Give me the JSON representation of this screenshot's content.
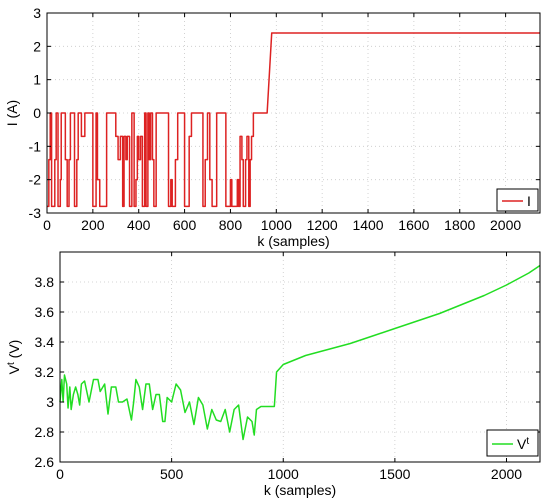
{
  "chart_data": [
    {
      "type": "line",
      "xlabel": "k (samples)",
      "ylabel": "I (A)",
      "xlim": [
        0,
        2150
      ],
      "ylim": [
        -3,
        3
      ],
      "x_ticks": [
        0,
        200,
        400,
        600,
        800,
        1000,
        1200,
        1400,
        1600,
        1800,
        2000
      ],
      "y_ticks": [
        -3,
        -2,
        -1,
        0,
        1,
        2,
        3
      ],
      "grid": true,
      "legend_position": "bottom-right",
      "series": [
        {
          "name": "I",
          "color": "#dd2222",
          "points": [
            [
              0,
              -2.8
            ],
            [
              8,
              -2.8
            ],
            [
              8,
              -1.4
            ],
            [
              14,
              -1.4
            ],
            [
              14,
              0
            ],
            [
              20,
              0
            ],
            [
              20,
              -2.8
            ],
            [
              34,
              -2.8
            ],
            [
              34,
              -1.4
            ],
            [
              40,
              -1.4
            ],
            [
              40,
              0
            ],
            [
              48,
              0
            ],
            [
              48,
              -2.8
            ],
            [
              58,
              -2.8
            ],
            [
              58,
              -2
            ],
            [
              62,
              -2
            ],
            [
              62,
              0
            ],
            [
              80,
              0
            ],
            [
              80,
              -1.4
            ],
            [
              88,
              -1.4
            ],
            [
              88,
              -2.8
            ],
            [
              96,
              -2.8
            ],
            [
              96,
              -1.4
            ],
            [
              102,
              -1.4
            ],
            [
              102,
              0
            ],
            [
              120,
              0
            ],
            [
              120,
              -2.8
            ],
            [
              130,
              -2.8
            ],
            [
              130,
              -1.4
            ],
            [
              136,
              -1.4
            ],
            [
              136,
              0
            ],
            [
              150,
              0
            ],
            [
              150,
              -0.7
            ],
            [
              160,
              -0.7
            ],
            [
              160,
              -0.7
            ],
            [
              165,
              -0.7
            ],
            [
              165,
              0
            ],
            [
              200,
              0
            ],
            [
              200,
              -2.8
            ],
            [
              208,
              -2.8
            ],
            [
              208,
              -2.8
            ],
            [
              214,
              -2.8
            ],
            [
              214,
              0
            ],
            [
              220,
              0
            ],
            [
              220,
              -2
            ],
            [
              230,
              -2
            ],
            [
              230,
              -2.8
            ],
            [
              260,
              -2.8
            ],
            [
              260,
              0
            ],
            [
              300,
              0
            ],
            [
              300,
              -0.7
            ],
            [
              310,
              -0.7
            ],
            [
              310,
              -1.4
            ],
            [
              320,
              -1.4
            ],
            [
              320,
              -0.7
            ],
            [
              330,
              -0.7
            ],
            [
              330,
              -2.8
            ],
            [
              336,
              -2.8
            ],
            [
              336,
              -0.7
            ],
            [
              344,
              -0.7
            ],
            [
              344,
              -1.4
            ],
            [
              350,
              -1.4
            ],
            [
              350,
              -0.7
            ],
            [
              360,
              -0.7
            ],
            [
              360,
              -2.8
            ],
            [
              370,
              -2.8
            ],
            [
              370,
              0
            ],
            [
              380,
              0
            ],
            [
              380,
              -2.8
            ],
            [
              388,
              -2.8
            ],
            [
              388,
              -2
            ],
            [
              394,
              -2
            ],
            [
              394,
              -0.7
            ],
            [
              400,
              -0.7
            ],
            [
              400,
              -1.4
            ],
            [
              408,
              -1.4
            ],
            [
              408,
              -0.7
            ],
            [
              416,
              -0.7
            ],
            [
              416,
              -2.8
            ],
            [
              426,
              -2.8
            ],
            [
              426,
              0
            ],
            [
              432,
              0
            ],
            [
              432,
              -2.8
            ],
            [
              440,
              -2.8
            ],
            [
              440,
              0
            ],
            [
              446,
              0
            ],
            [
              446,
              -1.4
            ],
            [
              452,
              -1.4
            ],
            [
              452,
              0
            ],
            [
              460,
              0
            ],
            [
              460,
              -1.4
            ],
            [
              466,
              -1.4
            ],
            [
              466,
              -2.8
            ],
            [
              476,
              -2.8
            ],
            [
              476,
              0
            ],
            [
              530,
              0
            ],
            [
              530,
              -2.8
            ],
            [
              540,
              -2.8
            ],
            [
              540,
              -2
            ],
            [
              546,
              -2
            ],
            [
              546,
              -2.8
            ],
            [
              560,
              -2.8
            ],
            [
              560,
              -1.4
            ],
            [
              570,
              -1.4
            ],
            [
              570,
              0
            ],
            [
              600,
              0
            ],
            [
              600,
              -2.8
            ],
            [
              620,
              -2.8
            ],
            [
              620,
              -0.7
            ],
            [
              630,
              -0.7
            ],
            [
              630,
              0
            ],
            [
              680,
              0
            ],
            [
              680,
              -2.8
            ],
            [
              690,
              -2.8
            ],
            [
              690,
              -1.4
            ],
            [
              700,
              -1.4
            ],
            [
              700,
              0
            ],
            [
              710,
              0
            ],
            [
              710,
              -2
            ],
            [
              720,
              -2
            ],
            [
              720,
              -2.8
            ],
            [
              740,
              -2.8
            ],
            [
              740,
              0
            ],
            [
              780,
              0
            ],
            [
              780,
              -2.8
            ],
            [
              800,
              -2.8
            ],
            [
              800,
              -2
            ],
            [
              806,
              -2
            ],
            [
              806,
              -2.8
            ],
            [
              830,
              -2.8
            ],
            [
              830,
              -2
            ],
            [
              836,
              -2
            ],
            [
              836,
              -2.8
            ],
            [
              842,
              -2.8
            ],
            [
              842,
              -0.7
            ],
            [
              850,
              -0.7
            ],
            [
              850,
              -1.4
            ],
            [
              856,
              -1.4
            ],
            [
              856,
              -2.8
            ],
            [
              866,
              -2.8
            ],
            [
              866,
              -1.4
            ],
            [
              872,
              -1.4
            ],
            [
              872,
              -0.7
            ],
            [
              880,
              -0.7
            ],
            [
              880,
              -2.8
            ],
            [
              886,
              -2.8
            ],
            [
              886,
              -1.4
            ],
            [
              892,
              -1.4
            ],
            [
              892,
              -0.7
            ],
            [
              900,
              -0.7
            ],
            [
              900,
              0
            ],
            [
              960,
              0
            ],
            [
              980,
              2.4
            ],
            [
              2150,
              2.4
            ]
          ]
        }
      ]
    },
    {
      "type": "line",
      "xlabel": "k (samples)",
      "ylabel": "V",
      "ylabel_sup": "t",
      "ylabel_suffix": " (V)",
      "xlim": [
        0,
        2150
      ],
      "ylim": [
        2.6,
        4.0
      ],
      "x_ticks": [
        0,
        500,
        1000,
        1500,
        2000
      ],
      "y_ticks": [
        2.6,
        2.8,
        3.0,
        3.2,
        3.4,
        3.6,
        3.8
      ],
      "y_tick_labels": [
        "2.6",
        "2.8",
        "3",
        "3.2",
        "3.4",
        "3.6",
        "3.8"
      ],
      "grid": true,
      "legend_position": "bottom-right",
      "series": [
        {
          "name": "V",
          "name_sup": "t",
          "color": "#22dd22",
          "points": [
            [
              0,
              3.0
            ],
            [
              8,
              3.15
            ],
            [
              14,
              3.0
            ],
            [
              20,
              3.18
            ],
            [
              30,
              3.12
            ],
            [
              36,
              2.96
            ],
            [
              44,
              3.1
            ],
            [
              50,
              2.95
            ],
            [
              60,
              3.05
            ],
            [
              70,
              3.1
            ],
            [
              80,
              3.05
            ],
            [
              88,
              2.98
            ],
            [
              96,
              3.12
            ],
            [
              110,
              3.14
            ],
            [
              130,
              3.0
            ],
            [
              150,
              3.15
            ],
            [
              170,
              3.15
            ],
            [
              180,
              3.07
            ],
            [
              200,
              3.12
            ],
            [
              215,
              2.92
            ],
            [
              230,
              3.1
            ],
            [
              250,
              3.1
            ],
            [
              262,
              3.0
            ],
            [
              280,
              3.0
            ],
            [
              300,
              3.02
            ],
            [
              320,
              2.88
            ],
            [
              330,
              3.0
            ],
            [
              340,
              3.15
            ],
            [
              355,
              3.1
            ],
            [
              370,
              2.95
            ],
            [
              385,
              3.12
            ],
            [
              400,
              3.12
            ],
            [
              415,
              2.95
            ],
            [
              430,
              3.05
            ],
            [
              445,
              3.05
            ],
            [
              460,
              2.87
            ],
            [
              470,
              2.87
            ],
            [
              480,
              3.03
            ],
            [
              500,
              3.0
            ],
            [
              520,
              3.12
            ],
            [
              540,
              3.08
            ],
            [
              560,
              2.93
            ],
            [
              580,
              3.0
            ],
            [
              600,
              2.85
            ],
            [
              620,
              3.03
            ],
            [
              640,
              2.98
            ],
            [
              660,
              2.82
            ],
            [
              680,
              2.95
            ],
            [
              700,
              2.88
            ],
            [
              720,
              2.87
            ],
            [
              740,
              2.95
            ],
            [
              760,
              2.8
            ],
            [
              780,
              2.95
            ],
            [
              800,
              2.98
            ],
            [
              820,
              2.75
            ],
            [
              840,
              2.9
            ],
            [
              860,
              2.87
            ],
            [
              870,
              2.78
            ],
            [
              880,
              2.95
            ],
            [
              900,
              2.97
            ],
            [
              960,
              2.97
            ],
            [
              970,
              3.2
            ],
            [
              1000,
              3.25
            ],
            [
              1100,
              3.31
            ],
            [
              1200,
              3.35
            ],
            [
              1300,
              3.39
            ],
            [
              1400,
              3.44
            ],
            [
              1500,
              3.49
            ],
            [
              1600,
              3.54
            ],
            [
              1700,
              3.59
            ],
            [
              1800,
              3.65
            ],
            [
              1900,
              3.71
            ],
            [
              2000,
              3.78
            ],
            [
              2100,
              3.86
            ],
            [
              2150,
              3.91
            ]
          ]
        }
      ]
    }
  ]
}
